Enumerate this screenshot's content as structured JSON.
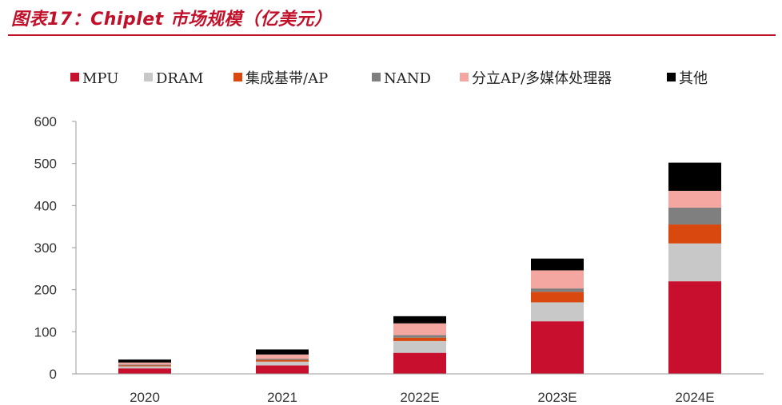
{
  "figure": {
    "title": "图表17：Chiplet 市场规模（亿美元）"
  },
  "chart_data": {
    "type": "bar",
    "stacked": true,
    "title": "图表17：Chiplet 市场规模（亿美元）",
    "xlabel": "",
    "ylabel": "",
    "ylim": [
      0,
      600
    ],
    "yticks": [
      0,
      100,
      200,
      300,
      400,
      500,
      600
    ],
    "grid": false,
    "legend_position": "top",
    "categories": [
      "2020",
      "2021",
      "2022E",
      "2023E",
      "2024E"
    ],
    "series": [
      {
        "name": "MPU",
        "color": "#c8102e",
        "values": [
          13,
          20,
          50,
          125,
          220
        ]
      },
      {
        "name": "DRAM",
        "color": "#c8c8c8",
        "values": [
          5,
          9,
          28,
          45,
          90
        ]
      },
      {
        "name": "集成基带/AP",
        "color": "#d9480f",
        "values": [
          2,
          4,
          8,
          25,
          45
        ]
      },
      {
        "name": "NAND",
        "color": "#7f7f7f",
        "values": [
          2,
          3,
          6,
          8,
          40
        ]
      },
      {
        "name": "分立AP/多媒体处理器",
        "color": "#f4a6a0",
        "values": [
          5,
          10,
          28,
          43,
          40
        ]
      },
      {
        "name": "其他",
        "color": "#000000",
        "values": [
          7,
          12,
          17,
          28,
          67
        ]
      }
    ]
  }
}
